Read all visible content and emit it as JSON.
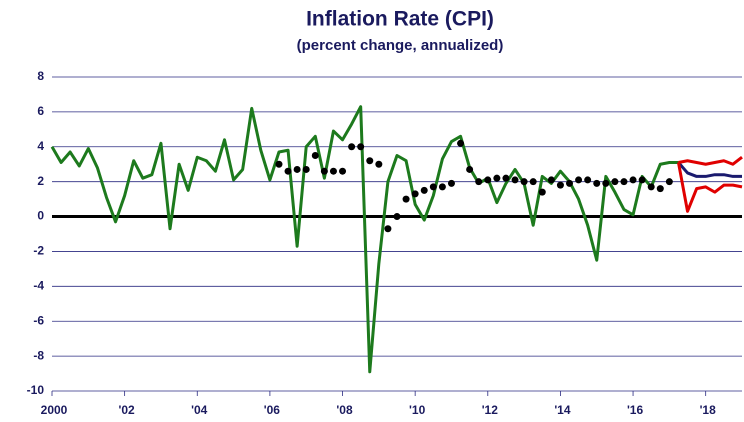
{
  "chart_data": {
    "type": "line",
    "title": "Inflation Rate (CPI)",
    "subtitle": "(percent change, annualized)",
    "xlim": [
      2000,
      2019
    ],
    "xticks": [
      2000,
      {
        "value": 2002,
        "label": "'02"
      },
      {
        "value": 2004,
        "label": "'04"
      },
      {
        "value": 2006,
        "label": "'06"
      },
      {
        "value": 2008,
        "label": "'08"
      },
      {
        "value": 2010,
        "label": "'10"
      },
      {
        "value": 2012,
        "label": "'12"
      },
      {
        "value": 2014,
        "label": "'14"
      },
      {
        "value": 2016,
        "label": "'16"
      },
      {
        "value": 2018,
        "label": "'18"
      }
    ],
    "ylim": [
      -10,
      8
    ],
    "yticks": [
      -10,
      -8,
      -6,
      -4,
      -2,
      0,
      2,
      4,
      6,
      8
    ],
    "grid": true,
    "series": [
      {
        "color": "#1d7a1d",
        "style": "line",
        "x": [
          2000,
          2000.25,
          2000.5,
          2000.75,
          2001,
          2001.25,
          2001.5,
          2001.75,
          2002,
          2002.25,
          2002.5,
          2002.75,
          2003,
          2003.25,
          2003.5,
          2003.75,
          2004,
          2004.25,
          2004.5,
          2004.75,
          2005,
          2005.25,
          2005.5,
          2005.75,
          2006,
          2006.25,
          2006.5,
          2006.75,
          2007,
          2007.25,
          2007.5,
          2007.75,
          2008,
          2008.25,
          2008.5,
          2008.75,
          2009,
          2009.25,
          2009.5,
          2009.75,
          2010,
          2010.25,
          2010.5,
          2010.75,
          2011,
          2011.25,
          2011.5,
          2011.75,
          2012,
          2012.25,
          2012.5,
          2012.75,
          2013,
          2013.25,
          2013.5,
          2013.75,
          2014,
          2014.25,
          2014.5,
          2014.75,
          2015,
          2015.25,
          2015.5,
          2015.75,
          2016,
          2016.25,
          2016.5,
          2016.75,
          2017,
          2017.25
        ],
        "values": [
          4.0,
          3.1,
          3.7,
          2.9,
          3.9,
          2.8,
          1.1,
          -0.3,
          1.2,
          3.2,
          2.2,
          2.4,
          4.2,
          -0.7,
          3.0,
          1.5,
          3.4,
          3.2,
          2.6,
          4.4,
          2.1,
          2.7,
          6.2,
          3.8,
          2.1,
          3.7,
          3.8,
          -1.7,
          4.0,
          4.6,
          2.2,
          4.9,
          4.4,
          5.3,
          6.3,
          -8.9,
          -2.7,
          2.0,
          3.5,
          3.2,
          0.7,
          -0.2,
          1.2,
          3.3,
          4.3,
          4.6,
          2.8,
          1.9,
          2.2,
          0.8,
          1.9,
          2.7,
          1.9,
          -0.5,
          2.3,
          1.9,
          2.6,
          2.0,
          1.0,
          -0.5,
          -2.5,
          2.3,
          1.4,
          0.4,
          0.1,
          2.3,
          1.7,
          3.0,
          3.1,
          3.1
        ]
      },
      {
        "color": "#000000",
        "style": "dots",
        "x": [
          2006.25,
          2006.5,
          2006.75,
          2007,
          2007.25,
          2007.5,
          2007.75,
          2008,
          2008.25,
          2008.5,
          2008.75,
          2009,
          2009.25,
          2009.5,
          2009.75,
          2010,
          2010.25,
          2010.5,
          2010.75,
          2011,
          2011.25,
          2011.5,
          2011.75,
          2012,
          2012.25,
          2012.5,
          2012.75,
          2013,
          2013.25,
          2013.5,
          2013.75,
          2014,
          2014.25,
          2014.5,
          2014.75,
          2015,
          2015.25,
          2015.5,
          2015.75,
          2016,
          2016.25,
          2016.5,
          2016.75,
          2017
        ],
        "values": [
          3.0,
          2.6,
          2.7,
          2.7,
          3.5,
          2.6,
          2.6,
          2.6,
          4.0,
          4.0,
          3.2,
          3.0,
          -0.7,
          0.0,
          1.0,
          1.3,
          1.5,
          1.7,
          1.7,
          1.9,
          4.2,
          2.7,
          2.0,
          2.1,
          2.2,
          2.2,
          2.1,
          2.0,
          2.0,
          1.4,
          2.1,
          1.8,
          1.9,
          2.1,
          2.1,
          1.9,
          1.9,
          2.0,
          2.0,
          2.1,
          2.1,
          1.7,
          1.6,
          2.0
        ]
      },
      {
        "color": "#1a1a6e",
        "style": "line",
        "x": [
          2017.25,
          2017.5,
          2017.75,
          2018,
          2018.25,
          2018.5,
          2018.75,
          2019
        ],
        "values": [
          3.1,
          2.5,
          2.3,
          2.3,
          2.4,
          2.4,
          2.3,
          2.3
        ]
      },
      {
        "color": "#e00000",
        "style": "line",
        "x": [
          2017.25,
          2017.5,
          2017.75,
          2018,
          2018.25,
          2018.5,
          2018.75,
          2019
        ],
        "values": [
          3.1,
          3.2,
          3.1,
          3.0,
          3.1,
          3.2,
          3.0,
          3.4
        ]
      },
      {
        "color": "#e00000",
        "style": "line",
        "x": [
          2017.25,
          2017.5,
          2017.75,
          2018,
          2018.25,
          2018.5,
          2018.75,
          2019
        ],
        "values": [
          3.1,
          0.3,
          1.6,
          1.7,
          1.4,
          1.8,
          1.8,
          1.7
        ]
      }
    ]
  }
}
